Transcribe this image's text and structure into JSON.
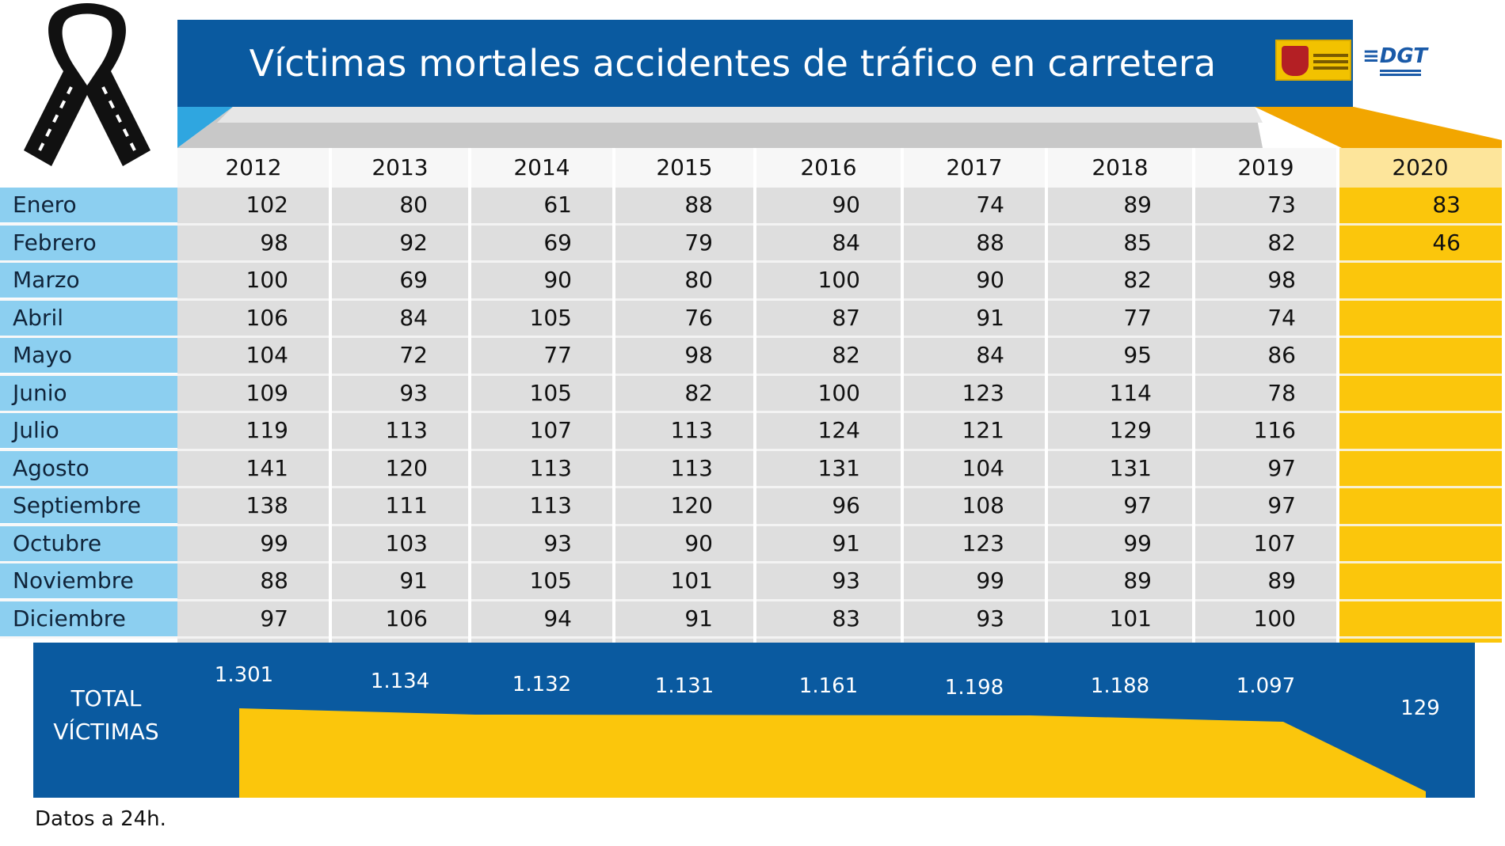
{
  "title": "Víctimas mortales accidentes de tráfico en carretera",
  "footnote": "Datos a 24h.",
  "total_label_line1": "TOTAL",
  "total_label_line2": "VÍCTIMAS",
  "logos": [
    "spain-government-logo",
    "dgt-logo"
  ],
  "colors": {
    "header_blue": "#0a5aa0",
    "month_blue": "#8ccff0",
    "highlight_yellow": "#fbc60c",
    "cell_gray": "#dedede"
  },
  "chart_data": {
    "type": "table",
    "title": "Víctimas mortales accidentes de tráfico en carretera",
    "columns": [
      "2012",
      "2013",
      "2014",
      "2015",
      "2016",
      "2017",
      "2018",
      "2019",
      "2020"
    ],
    "rows": [
      {
        "month": "Enero",
        "values": [
          "102",
          "80",
          "61",
          "88",
          "90",
          "74",
          "89",
          "73",
          "83"
        ]
      },
      {
        "month": "Febrero",
        "values": [
          "98",
          "92",
          "69",
          "79",
          "84",
          "88",
          "85",
          "82",
          "46"
        ]
      },
      {
        "month": "Marzo",
        "values": [
          "100",
          "69",
          "90",
          "80",
          "100",
          "90",
          "82",
          "98",
          ""
        ]
      },
      {
        "month": "Abril",
        "values": [
          "106",
          "84",
          "105",
          "76",
          "87",
          "91",
          "77",
          "74",
          ""
        ]
      },
      {
        "month": "Mayo",
        "values": [
          "104",
          "72",
          "77",
          "98",
          "82",
          "84",
          "95",
          "86",
          ""
        ]
      },
      {
        "month": "Junio",
        "values": [
          "109",
          "93",
          "105",
          "82",
          "100",
          "123",
          "114",
          "78",
          ""
        ]
      },
      {
        "month": "Julio",
        "values": [
          "119",
          "113",
          "107",
          "113",
          "124",
          "121",
          "129",
          "116",
          ""
        ]
      },
      {
        "month": "Agosto",
        "values": [
          "141",
          "120",
          "113",
          "113",
          "131",
          "104",
          "131",
          "97",
          ""
        ]
      },
      {
        "month": "Septiembre",
        "values": [
          "138",
          "111",
          "113",
          "120",
          "96",
          "108",
          "97",
          "97",
          ""
        ]
      },
      {
        "month": "Octubre",
        "values": [
          "99",
          "103",
          "93",
          "90",
          "91",
          "123",
          "99",
          "107",
          ""
        ]
      },
      {
        "month": "Noviembre",
        "values": [
          "88",
          "91",
          "105",
          "101",
          "93",
          "99",
          "89",
          "89",
          ""
        ]
      },
      {
        "month": "Diciembre",
        "values": [
          "97",
          "106",
          "94",
          "91",
          "83",
          "93",
          "101",
          "100",
          ""
        ]
      }
    ],
    "totals": [
      "1.301",
      "1.134",
      "1.132",
      "1.131",
      "1.161",
      "1.198",
      "1.188",
      "1.097",
      "129"
    ],
    "highlight_column": "2020"
  }
}
